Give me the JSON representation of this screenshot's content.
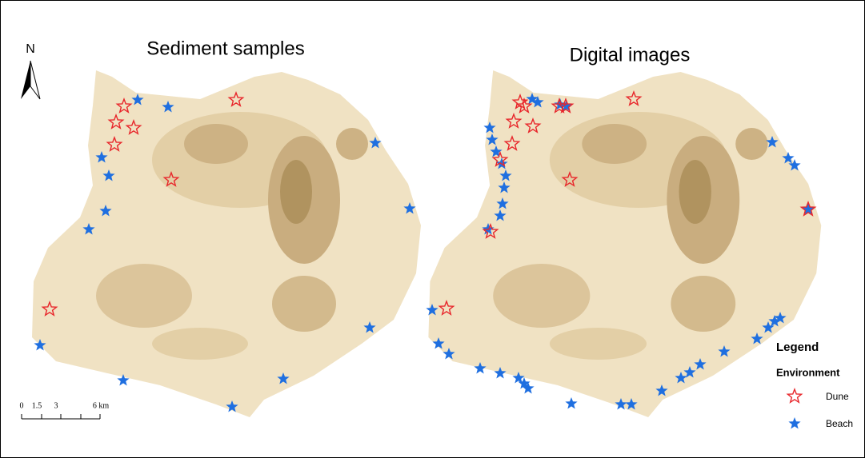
{
  "titles": [
    "Sediment samples",
    "Digital images"
  ],
  "north": "N",
  "scale_bar": {
    "labels": [
      "0",
      "1.5",
      "3",
      "6 km"
    ]
  },
  "legend": {
    "title": "Legend",
    "subtitle": "Environment",
    "items": [
      "Dune",
      "Beach"
    ]
  }
}
